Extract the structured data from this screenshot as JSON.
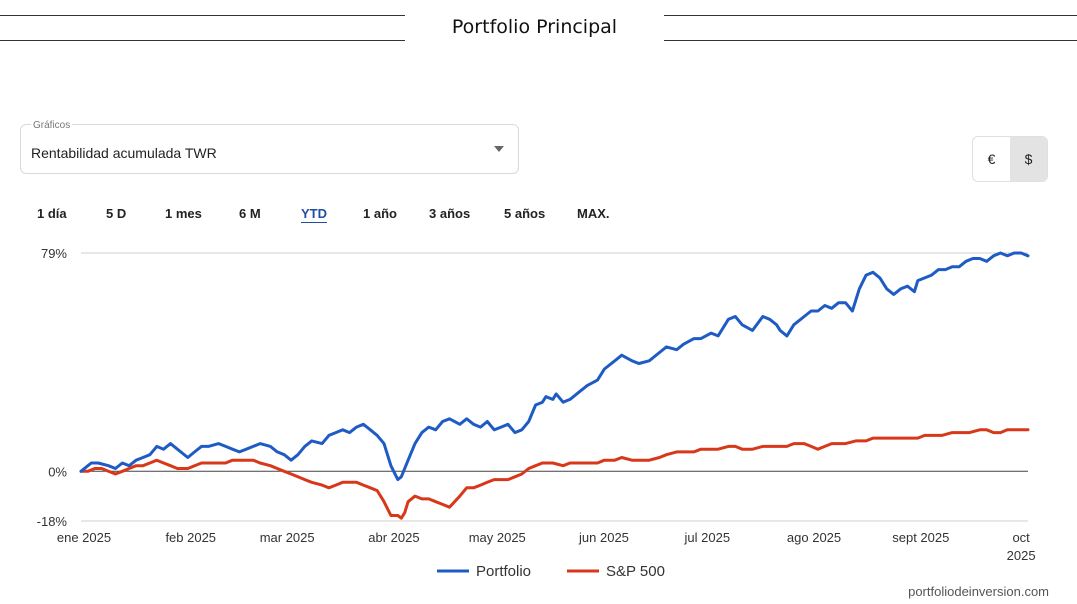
{
  "header": {
    "title": "Portfolio Principal"
  },
  "selector": {
    "label": "Gráficos",
    "value": "Rentabilidad acumulada TWR"
  },
  "currency": {
    "options": [
      "€",
      "$"
    ],
    "selected": "$"
  },
  "ranges": {
    "items": [
      "1 día",
      "5 D",
      "1 mes",
      "6 M",
      "YTD",
      "1 año",
      "3 años",
      "5 años",
      "MAX."
    ],
    "active": "YTD"
  },
  "colors": {
    "portfolio": "#1f5bc4",
    "sp500": "#d8381a"
  },
  "chart_data": {
    "type": "line",
    "title": "Rentabilidad acumulada TWR",
    "y_tick_labels": [
      "79%",
      "0%",
      "-18%"
    ],
    "y_ticks": [
      79,
      0,
      -18
    ],
    "ylim": [
      -18,
      79
    ],
    "xlim": [
      0,
      275
    ],
    "x_tick_labels": [
      "ene 2025",
      "feb 2025",
      "mar 2025",
      "abr 2025",
      "may 2025",
      "jun 2025",
      "jul 2025",
      "ago 2025",
      "sept 2025",
      "oct 2025"
    ],
    "x_ticks": [
      0,
      31,
      59,
      90,
      120,
      151,
      181,
      212,
      243,
      273
    ],
    "legend": [
      "Portfolio",
      "S&P 500"
    ],
    "legend_position": "bottom",
    "series": [
      {
        "name": "Portfolio",
        "x": [
          0,
          2,
          3,
          5,
          8,
          10,
          12,
          14,
          16,
          18,
          20,
          22,
          24,
          26,
          28,
          31,
          33,
          35,
          37,
          40,
          42,
          44,
          46,
          48,
          50,
          52,
          55,
          57,
          59,
          61,
          63,
          65,
          67,
          70,
          72,
          74,
          76,
          78,
          80,
          82,
          84,
          86,
          88,
          90,
          92,
          93,
          95,
          97,
          99,
          101,
          103,
          105,
          107,
          110,
          112,
          114,
          116,
          118,
          120,
          122,
          124,
          126,
          128,
          130,
          132,
          134,
          135,
          137,
          138,
          140,
          142,
          145,
          147,
          150,
          152,
          155,
          157,
          160,
          162,
          165,
          168,
          170,
          173,
          175,
          178,
          180,
          183,
          185,
          188,
          190,
          192,
          195,
          198,
          200,
          202,
          203,
          205,
          207,
          209,
          210,
          212,
          214,
          216,
          218,
          220,
          222,
          224,
          226,
          228,
          230,
          232,
          234,
          236,
          238,
          240,
          242,
          243,
          245,
          247,
          249,
          251,
          253,
          255,
          257,
          259,
          261,
          263,
          265,
          267,
          269,
          271,
          273,
          275
        ],
        "y": [
          0,
          2,
          3,
          3,
          2,
          1,
          3,
          2,
          4,
          5,
          6,
          9,
          8,
          10,
          8,
          5,
          7,
          9,
          9,
          10,
          9,
          8,
          7,
          8,
          9,
          10,
          9,
          7,
          6,
          4,
          6,
          9,
          11,
          10,
          13,
          14,
          15,
          14,
          16,
          17,
          15,
          13,
          10,
          2,
          -3,
          -2,
          4,
          10,
          14,
          16,
          15,
          18,
          19,
          17,
          19,
          17,
          16,
          18,
          15,
          16,
          17,
          14,
          15,
          18,
          24,
          25,
          27,
          26,
          28,
          25,
          26,
          29,
          31,
          33,
          37,
          40,
          42,
          40,
          39,
          40,
          43,
          45,
          44,
          46,
          48,
          48,
          50,
          49,
          55,
          56,
          53,
          51,
          56,
          55,
          53,
          51,
          49,
          53,
          55,
          56,
          58,
          58,
          60,
          59,
          61,
          61,
          58,
          66,
          71,
          72,
          70,
          66,
          64,
          66,
          67,
          65,
          69,
          70,
          71,
          73,
          73,
          74,
          74,
          76,
          77,
          77,
          76,
          78,
          79,
          78,
          79,
          79,
          78
        ]
      },
      {
        "name": "S&P 500",
        "x": [
          0,
          2,
          4,
          6,
          8,
          10,
          12,
          14,
          16,
          18,
          20,
          22,
          24,
          26,
          28,
          31,
          33,
          35,
          37,
          40,
          42,
          44,
          46,
          48,
          50,
          52,
          55,
          57,
          59,
          61,
          63,
          65,
          67,
          70,
          72,
          74,
          76,
          78,
          80,
          82,
          84,
          86,
          88,
          90,
          92,
          93,
          94,
          95,
          97,
          99,
          101,
          103,
          105,
          107,
          110,
          112,
          114,
          116,
          118,
          120,
          122,
          124,
          126,
          128,
          130,
          132,
          134,
          135,
          137,
          140,
          142,
          145,
          147,
          150,
          152,
          155,
          157,
          160,
          162,
          165,
          168,
          170,
          173,
          175,
          178,
          180,
          183,
          185,
          188,
          190,
          192,
          195,
          198,
          200,
          202,
          205,
          207,
          210,
          212,
          214,
          216,
          218,
          220,
          222,
          225,
          228,
          230,
          232,
          235,
          238,
          240,
          243,
          245,
          247,
          250,
          253,
          255,
          258,
          261,
          263,
          265,
          267,
          269,
          271,
          273,
          275
        ],
        "y": [
          0,
          0,
          1,
          1,
          0,
          -1,
          0,
          1,
          2,
          2,
          3,
          4,
          3,
          2,
          1,
          1,
          2,
          3,
          3,
          3,
          3,
          4,
          4,
          4,
          4,
          3,
          2,
          1,
          0,
          -1,
          -2,
          -3,
          -4,
          -5,
          -6,
          -5,
          -4,
          -4,
          -4,
          -5,
          -6,
          -7,
          -11,
          -16,
          -16,
          -17,
          -15,
          -11,
          -9,
          -10,
          -10,
          -11,
          -12,
          -13,
          -9,
          -6,
          -6,
          -5,
          -4,
          -3,
          -3,
          -3,
          -2,
          -1,
          1,
          2,
          3,
          3,
          3,
          2,
          3,
          3,
          3,
          3,
          4,
          4,
          5,
          4,
          4,
          4,
          5,
          6,
          7,
          7,
          7,
          8,
          8,
          8,
          9,
          9,
          8,
          8,
          9,
          9,
          9,
          9,
          10,
          10,
          9,
          8,
          9,
          10,
          10,
          10,
          11,
          11,
          12,
          12,
          12,
          12,
          12,
          12,
          13,
          13,
          13,
          14,
          14,
          14,
          15,
          15,
          14,
          14,
          15,
          15,
          15,
          15
        ]
      }
    ]
  },
  "footer": {
    "text": "portfoliodeinversion.com"
  }
}
